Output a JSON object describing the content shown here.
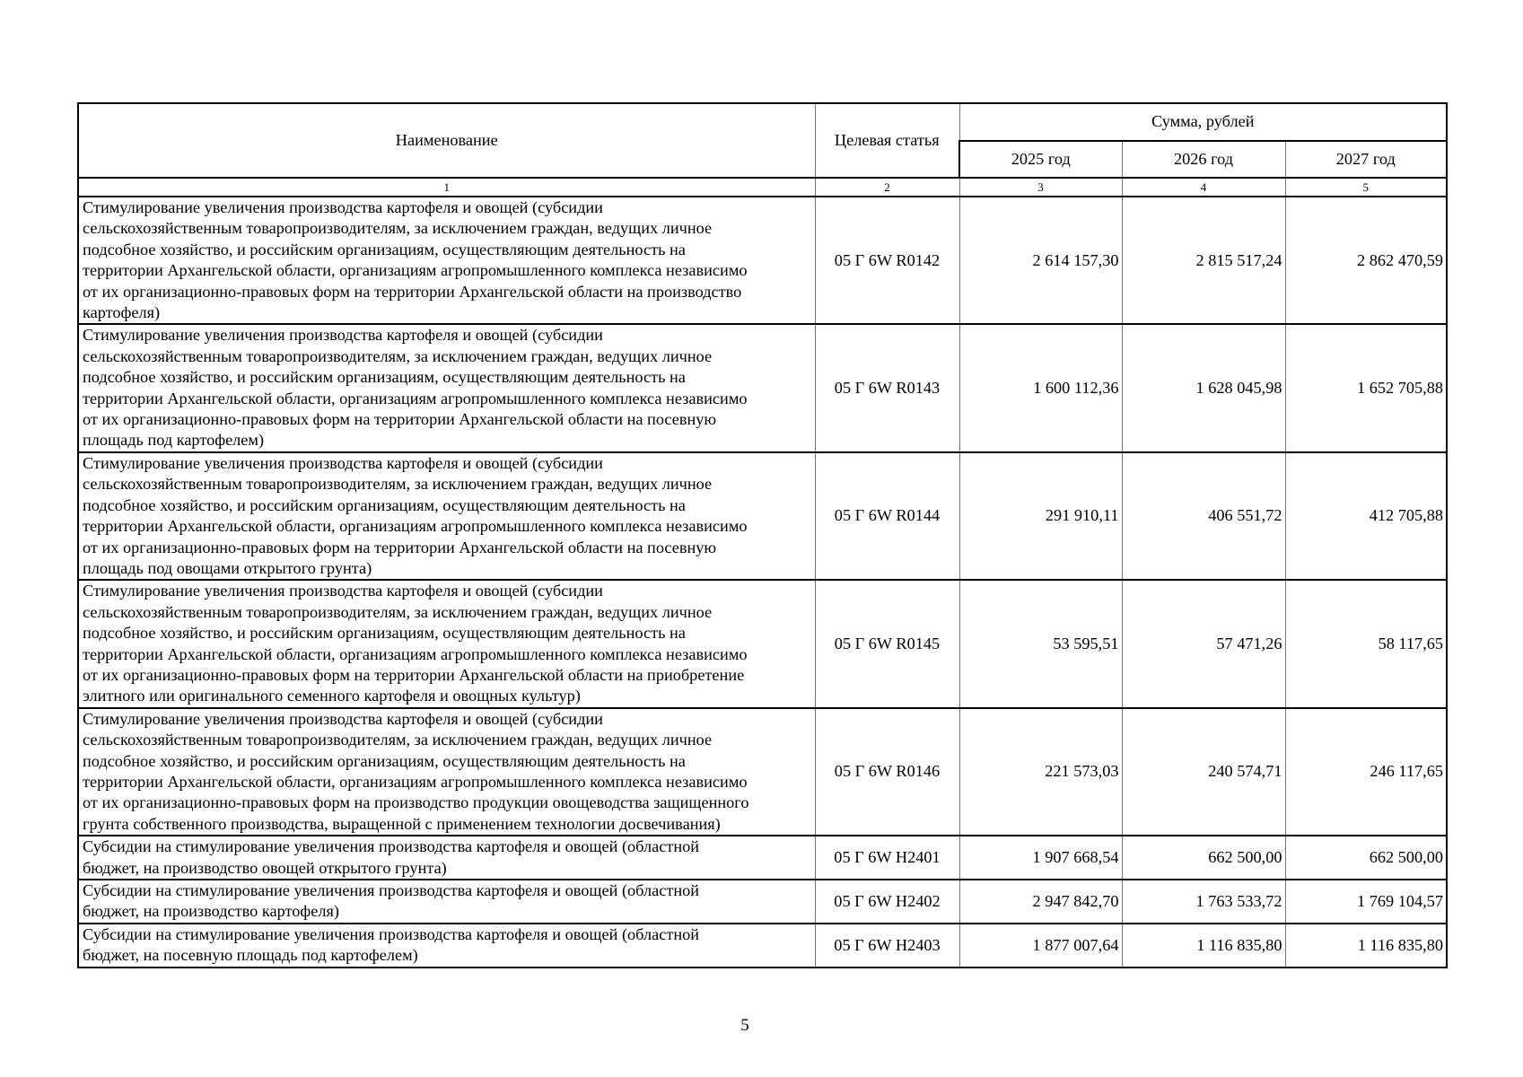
{
  "header": {
    "name": "Наименование",
    "target_article": "Целевая статья",
    "sum": "Сумма, рублей",
    "years": [
      "2025 год",
      "2026 год",
      "2027 год"
    ],
    "column_numbers": [
      "1",
      "2",
      "3",
      "4",
      "5"
    ]
  },
  "rows": [
    {
      "name": "Стимулирование увеличения производства картофеля и овощей (субсидии\nсельскохозяйственным товаропроизводителям, за исключением граждан, ведущих личное\nподсобное хозяйство, и российским организациям, осуществляющим деятельность на\nтерритории Архангельской области, организациям агропромышленного комплекса независимо\nот их организационно-правовых форм на территории Архангельской области на производство\nкартофеля)",
      "code": "05 Г 6W R0142",
      "v2025": "2 614 157,30",
      "v2026": "2 815 517,24",
      "v2027": "2 862 470,59"
    },
    {
      "name": "Стимулирование увеличения производства картофеля и овощей (субсидии\nсельскохозяйственным товаропроизводителям, за исключением граждан, ведущих личное\nподсобное хозяйство, и российским организациям, осуществляющим деятельность на\nтерритории Архангельской области, организациям агропромышленного комплекса независимо\nот их организационно-правовых форм на территории Архангельской области на посевную\nплощадь под картофелем)",
      "code": "05 Г 6W R0143",
      "v2025": "1 600 112,36",
      "v2026": "1 628 045,98",
      "v2027": "1 652 705,88"
    },
    {
      "name": "Стимулирование увеличения производства картофеля и овощей (субсидии\nсельскохозяйственным товаропроизводителям, за исключением граждан, ведущих личное\nподсобное хозяйство, и российским организациям, осуществляющим деятельность на\nтерритории Архангельской области, организациям агропромышленного комплекса независимо\nот их организационно-правовых форм на территории Архангельской области на посевную\nплощадь под овощами открытого грунта)",
      "code": "05 Г 6W R0144",
      "v2025": "291 910,11",
      "v2026": "406 551,72",
      "v2027": "412 705,88"
    },
    {
      "name": "Стимулирование увеличения производства картофеля и овощей (субсидии\nсельскохозяйственным товаропроизводителям, за исключением граждан, ведущих личное\nподсобное хозяйство, и российским организациям, осуществляющим деятельность на\nтерритории Архангельской области, организациям агропромышленного комплекса независимо\nот их организационно-правовых форм на территории Архангельской области на приобретение\nэлитного или оригинального семенного картофеля и овощных культур)",
      "code": "05 Г 6W R0145",
      "v2025": "53 595,51",
      "v2026": "57 471,26",
      "v2027": "58 117,65"
    },
    {
      "name": "Стимулирование увеличения производства картофеля и овощей (субсидии\nсельскохозяйственным товаропроизводителям, за исключением граждан, ведущих личное\nподсобное хозяйство, и российским организациям, осуществляющим деятельность на\nтерритории Архангельской области, организациям агропромышленного комплекса независимо\nот их организационно-правовых форм на производство продукции овощеводства защищенного\nгрунта собственного производства, выращенной с применением технологии досвечивания)",
      "code": "05 Г 6W R0146",
      "v2025": "221 573,03",
      "v2026": "240 574,71",
      "v2027": "246 117,65"
    },
    {
      "name": "Субсидии на стимулирование увеличения производства картофеля и овощей (областной\nбюджет, на производство овощей открытого грунта)",
      "code": "05 Г 6W H2401",
      "v2025": "1 907 668,54",
      "v2026": "662 500,00",
      "v2027": "662 500,00"
    },
    {
      "name": "Субсидии на стимулирование увеличения производства картофеля и овощей (областной\nбюджет, на производство картофеля)",
      "code": "05 Г 6W H2402",
      "v2025": "2 947 842,70",
      "v2026": "1 763 533,72",
      "v2027": "1 769 104,57"
    },
    {
      "name": "Субсидии на стимулирование увеличения производства картофеля и овощей (областной\nбюджет, на посевную площадь под картофелем)",
      "code": "05 Г 6W H2403",
      "v2025": "1 877 007,64",
      "v2026": "1 116 835,80",
      "v2027": "1 116 835,80"
    }
  ],
  "page_number": "5"
}
